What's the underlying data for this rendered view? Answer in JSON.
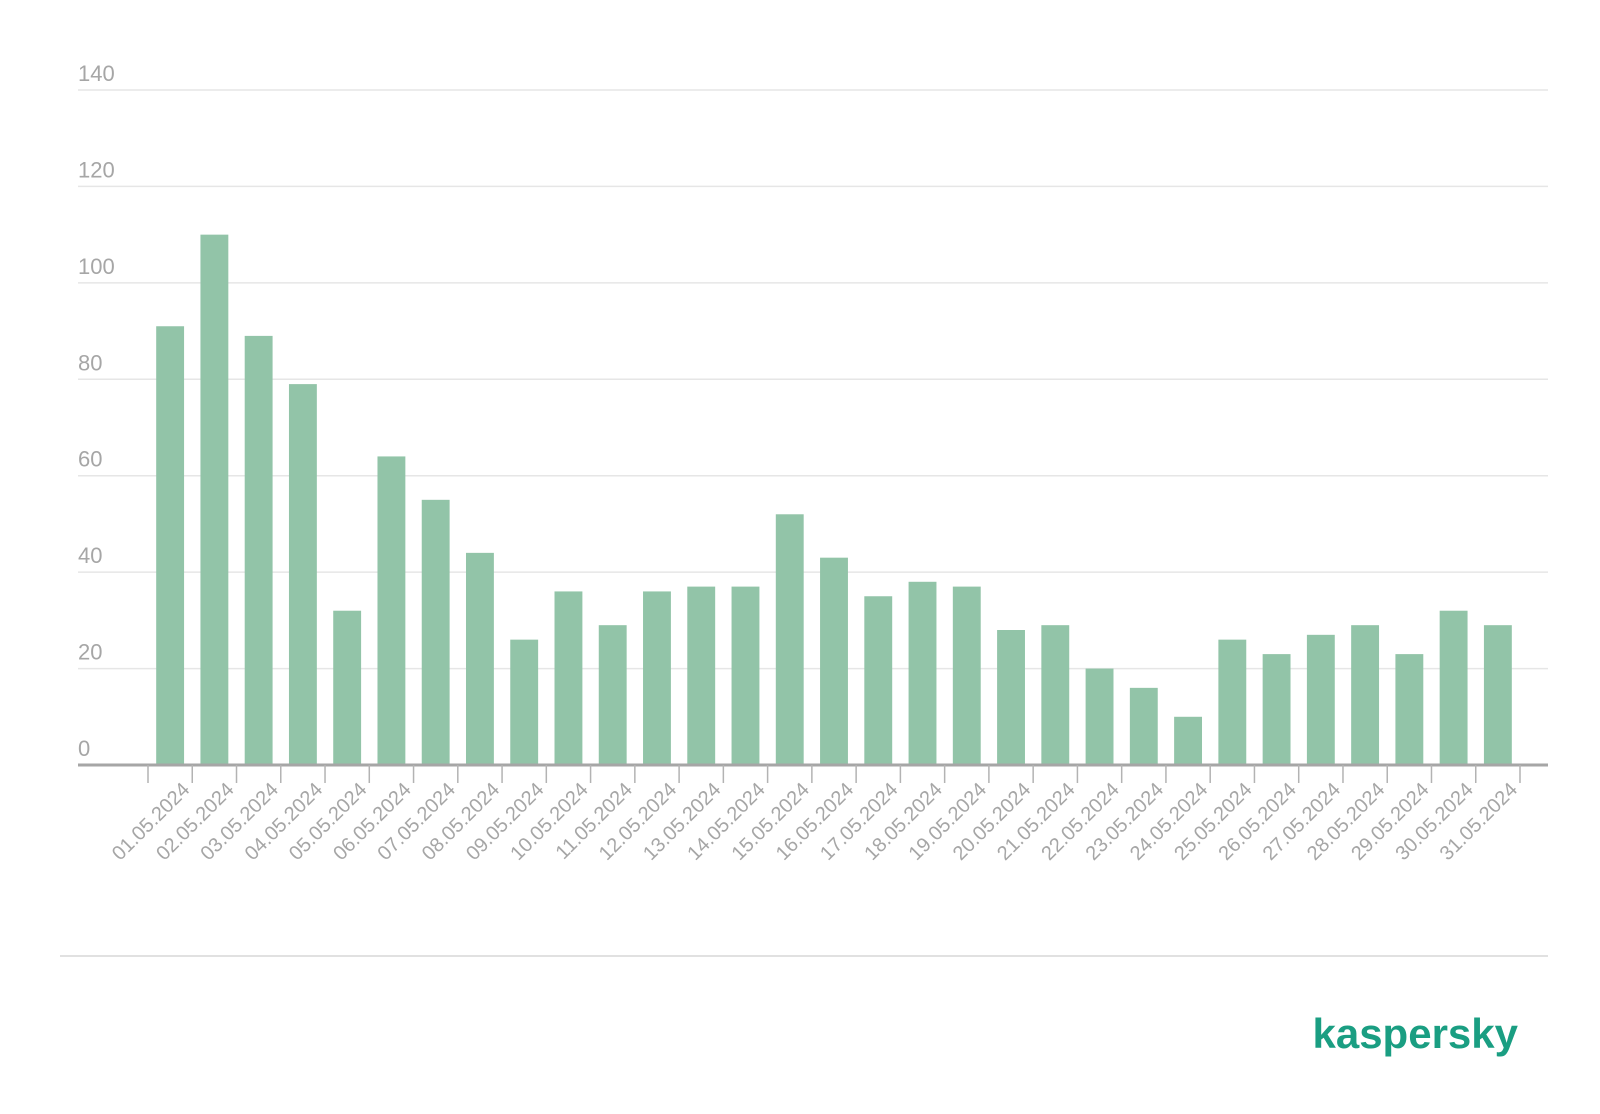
{
  "chart_data": {
    "type": "bar",
    "categories": [
      "01.05.2024",
      "02.05.2024",
      "03.05.2024",
      "04.05.2024",
      "05.05.2024",
      "06.05.2024",
      "07.05.2024",
      "08.05.2024",
      "09.05.2024",
      "10.05.2024",
      "11.05.2024",
      "12.05.2024",
      "13.05.2024",
      "14.05.2024",
      "15.05.2024",
      "16.05.2024",
      "17.05.2024",
      "18.05.2024",
      "19.05.2024",
      "20.05.2024",
      "21.05.2024",
      "22.05.2024",
      "23.05.2024",
      "24.05.2024",
      "25.05.2024",
      "26.05.2024",
      "27.05.2024",
      "28.05.2024",
      "29.05.2024",
      "30.05.2024",
      "31.05.2024"
    ],
    "values": [
      91,
      110,
      89,
      79,
      32,
      64,
      55,
      44,
      26,
      36,
      29,
      36,
      37,
      37,
      52,
      43,
      35,
      38,
      37,
      28,
      29,
      20,
      16,
      10,
      26,
      23,
      27,
      29,
      23,
      32,
      29
    ],
    "title": "",
    "xlabel": "",
    "ylabel": "",
    "ylim": [
      0,
      140
    ],
    "yticks": [
      0,
      20,
      40,
      60,
      80,
      100,
      120,
      140
    ],
    "grid": true,
    "legend": "none",
    "bar_color": "#92c4a8"
  },
  "branding": {
    "logo_text": "kaspersky",
    "logo_color": "#1a9e82"
  }
}
